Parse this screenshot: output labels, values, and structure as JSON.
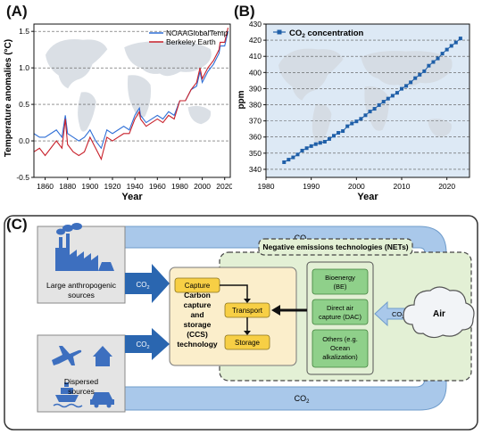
{
  "panels": {
    "a": {
      "letter": "(A)",
      "chart_data": {
        "type": "line",
        "xlabel": "Year",
        "ylabel": "Temperature anomalies (°C)",
        "xlim": [
          1850,
          2025
        ],
        "ylim": [
          -0.5,
          1.6
        ],
        "x_ticks": [
          1860,
          1880,
          1900,
          1920,
          1940,
          1960,
          1980,
          2000,
          2020
        ],
        "y_ticks": [
          -0.5,
          0.0,
          0.5,
          1.0,
          1.5
        ],
        "y_tick_labels": [
          "-0.5",
          "0.0",
          "0.5",
          "1.0",
          "1.5"
        ],
        "legend": "top-right",
        "grid": "horizontal dashed",
        "series": [
          {
            "name": "NOAAGlobalTemp",
            "color": "#2f6fd6",
            "x": [
              1850,
              1855,
              1860,
              1865,
              1870,
              1875,
              1878,
              1880,
              1885,
              1890,
              1895,
              1900,
              1905,
              1910,
              1915,
              1920,
              1925,
              1930,
              1935,
              1940,
              1944,
              1945,
              1950,
              1955,
              1960,
              1965,
              1970,
              1975,
              1980,
              1985,
              1990,
              1995,
              1998,
              2000,
              2005,
              2010,
              2015,
              2016,
              2020,
              2023
            ],
            "values": [
              0.1,
              0.05,
              0.05,
              0.1,
              0.15,
              0.05,
              0.35,
              0.1,
              0.05,
              0.0,
              0.05,
              0.15,
              0.0,
              -0.1,
              0.15,
              0.1,
              0.15,
              0.2,
              0.15,
              0.35,
              0.45,
              0.35,
              0.25,
              0.3,
              0.35,
              0.3,
              0.4,
              0.35,
              0.55,
              0.55,
              0.7,
              0.75,
              0.95,
              0.8,
              0.95,
              1.05,
              1.2,
              1.3,
              1.3,
              1.5
            ]
          },
          {
            "name": "Berkeley Earth",
            "color": "#c8202a",
            "x": [
              1850,
              1855,
              1860,
              1865,
              1870,
              1875,
              1878,
              1880,
              1885,
              1890,
              1895,
              1900,
              1905,
              1910,
              1915,
              1920,
              1925,
              1930,
              1935,
              1940,
              1944,
              1945,
              1950,
              1955,
              1960,
              1965,
              1970,
              1975,
              1980,
              1985,
              1990,
              1995,
              1998,
              2000,
              2005,
              2010,
              2015,
              2016,
              2020,
              2023
            ],
            "values": [
              -0.15,
              -0.1,
              -0.2,
              -0.1,
              0.0,
              -0.1,
              0.3,
              -0.05,
              -0.15,
              -0.2,
              -0.15,
              0.05,
              -0.1,
              -0.25,
              0.05,
              0.0,
              0.05,
              0.1,
              0.1,
              0.3,
              0.4,
              0.3,
              0.2,
              0.25,
              0.3,
              0.25,
              0.35,
              0.3,
              0.55,
              0.55,
              0.7,
              0.8,
              1.0,
              0.85,
              1.0,
              1.1,
              1.25,
              1.35,
              1.35,
              1.55
            ]
          }
        ]
      }
    },
    "b": {
      "letter": "(B)",
      "chart_data": {
        "type": "line",
        "xlabel": "Year",
        "ylabel": "ppm",
        "xlim": [
          1980,
          2025
        ],
        "ylim": [
          335,
          430
        ],
        "x_ticks": [
          1980,
          1990,
          2000,
          2010,
          2020
        ],
        "y_ticks": [
          340,
          350,
          360,
          370,
          380,
          390,
          400,
          410,
          420,
          430
        ],
        "legend": "top-left",
        "grid": "horizontal dashed",
        "series": [
          {
            "name_main": "CO",
            "name_sub": "2",
            "name_rest": " concentration",
            "color": "#1f5fa8",
            "marker": "square",
            "x": [
              1984,
              1985,
              1986,
              1987,
              1988,
              1989,
              1990,
              1991,
              1992,
              1993,
              1994,
              1995,
              1996,
              1997,
              1998,
              1999,
              2000,
              2001,
              2002,
              2003,
              2004,
              2005,
              2006,
              2007,
              2008,
              2009,
              2010,
              2011,
              2012,
              2013,
              2014,
              2015,
              2016,
              2017,
              2018,
              2019,
              2020,
              2021,
              2022,
              2023
            ],
            "values": [
              344.4,
              346.0,
              347.4,
              349.2,
              351.6,
              353.1,
              354.4,
              355.6,
              356.4,
              357.1,
              358.8,
              360.8,
              362.6,
              363.7,
              366.7,
              368.4,
              369.7,
              371.3,
              373.5,
              375.8,
              377.5,
              379.8,
              381.9,
              383.8,
              385.6,
              387.4,
              389.9,
              391.7,
              393.9,
              396.5,
              398.6,
              400.8,
              404.2,
              406.5,
              408.7,
              411.7,
              414.2,
              416.5,
              418.6,
              421.1
            ]
          }
        ]
      }
    },
    "c": {
      "letter": "(C)",
      "sources": {
        "large": "Large anthropogenic sources",
        "dispersed": "Dispersed sources"
      },
      "co2": {
        "main": "CO",
        "sub": "2"
      },
      "ccs": {
        "title": "Carbon capture and storage (CCS) technology",
        "capture": "Capture",
        "transport": "Transport",
        "storage": "Storage"
      },
      "nets": {
        "title": "Negative emissions technologies (NETs)",
        "bioenergy": "Bioenergy (BE)",
        "dac": "Direct air capture (DAC)",
        "others": "Others (e.g. Ocean alkalization)"
      },
      "air": "Air",
      "colors": {
        "arrow_blue": "#a9c8ea",
        "arrow_dark": "#2a66b0",
        "icon_blue": "#3d6fbf",
        "source_box": "#e4e4e4",
        "ccs_box": "#fbeecb",
        "yellow_box": "#f7cf45",
        "nets_box": "#e3f0d5",
        "green_box": "#8fd08a"
      }
    }
  }
}
